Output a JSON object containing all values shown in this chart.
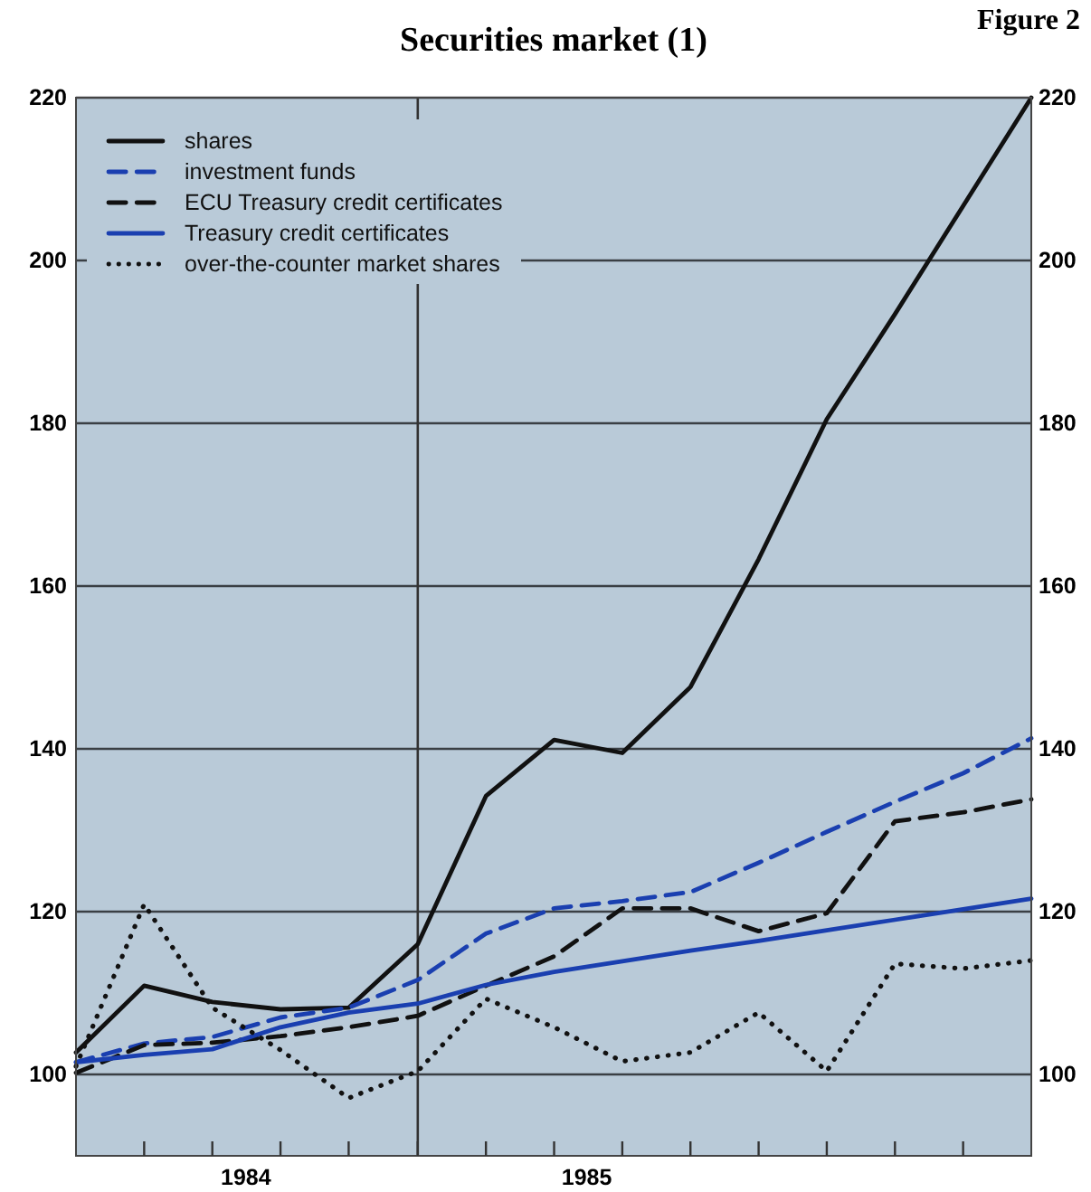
{
  "chart_data": {
    "type": "line",
    "title": "Securities market (1)",
    "annotations": [
      "Figure 2"
    ],
    "x": [
      "1984-01-01",
      "1984-03-14",
      "1984-05-26",
      "1984-08-07",
      "1984-10-19",
      "1985-01-01",
      "1985-03-15",
      "1985-05-27",
      "1985-08-08",
      "1985-10-20",
      "1986-01-01",
      "1986-03-15",
      "1986-05-27",
      "1986-08-08",
      "1986-10-20"
    ],
    "xlim": [
      "1984-01-01",
      "1986-10-20"
    ],
    "xticks": [
      {
        "value": "1984-03-14",
        "label": null
      },
      {
        "value": "1984-05-26",
        "label": null
      },
      {
        "value": "1984-08-07",
        "label": null
      },
      {
        "value": "1984-10-19",
        "label": null
      },
      {
        "value": "1985-01-01",
        "label": null
      },
      {
        "value": "1985-03-15",
        "label": null
      },
      {
        "value": "1985-05-27",
        "label": null
      },
      {
        "value": "1985-08-08",
        "label": null
      },
      {
        "value": "1985-10-20",
        "label": null
      },
      {
        "value": "1986-01-01",
        "label": null
      },
      {
        "value": "1986-03-15",
        "label": null
      },
      {
        "value": "1986-05-27",
        "label": null
      },
      {
        "value": "1986-08-08",
        "label": null
      },
      {
        "value": "1984-07-01",
        "label": "1984"
      },
      {
        "value": "1985-07-01",
        "label": "1985"
      }
    ],
    "ylim": [
      90,
      220
    ],
    "yticks": [
      100,
      120,
      140,
      160,
      180,
      200,
      220
    ],
    "y2lim": [
      90,
      220
    ],
    "y2ticks": [
      100,
      120,
      140,
      160,
      180,
      200,
      220
    ],
    "grid": "y",
    "legend": "top left",
    "marker": "none",
    "ref_lines": [
      {
        "axis": "x",
        "value": "1985-01-01",
        "label": null,
        "color": "#333333"
      }
    ],
    "series": [
      {
        "name": "shares",
        "color": "#111111",
        "line_style": "solid",
        "values": [
          102.7,
          110.9,
          108.9,
          108,
          108.2,
          116,
          134.2,
          141.1,
          139.5,
          147.6,
          163.3,
          180.5,
          193.4,
          206.7,
          220
        ]
      },
      {
        "name": "investment funds",
        "color": "#1a3fb0",
        "line_style": "dashed",
        "values": [
          101.5,
          103.8,
          104.6,
          107,
          108.2,
          111.6,
          117.3,
          120.4,
          121.3,
          122.4,
          126,
          129.8,
          133.5,
          137,
          141.3
        ]
      },
      {
        "name": "ECU Treasury credit certificates",
        "color": "#111111",
        "line_style": "dashed",
        "values": [
          100.2,
          103.6,
          103.9,
          104.7,
          105.8,
          107.2,
          110.9,
          114.5,
          120.4,
          120.4,
          117.6,
          119.8,
          131.1,
          132.2,
          133.8
        ]
      },
      {
        "name": "Treasury credit certificates",
        "color": "#1a3fb0",
        "line_style": "solid",
        "values": [
          101.5,
          102.4,
          103.1,
          105.8,
          107.6,
          108.7,
          111,
          112.6,
          113.9,
          115.2,
          116.4,
          117.7,
          119,
          120.3,
          121.6
        ]
      },
      {
        "name": "over-the-counter market shares",
        "color": "#111111",
        "line_style": "dotted",
        "values": [
          101,
          120.9,
          108.2,
          103,
          97.1,
          100.4,
          109.3,
          105.8,
          101.6,
          102.7,
          107.6,
          100.4,
          113.6,
          113,
          114
        ]
      }
    ]
  }
}
